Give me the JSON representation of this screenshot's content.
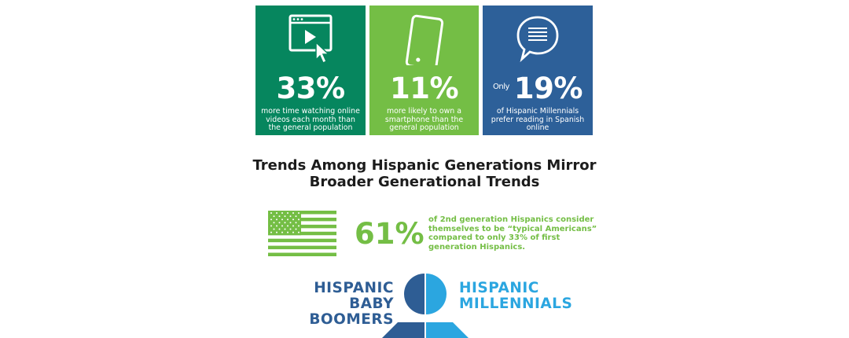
{
  "colors": {
    "dark_green": "#06865e",
    "light_green": "#74be45",
    "blue": "#2d6099",
    "dark_blue": "#2e5d94",
    "light_blue": "#2ba6e0",
    "headline": "#1c1c1c"
  },
  "cards": [
    {
      "icon": "video-play-icon",
      "value": "33%",
      "prefix": "",
      "description": "more time watching online videos each month than the general population"
    },
    {
      "icon": "smartphone-icon",
      "value": "11%",
      "prefix": "",
      "description": "more likely to own a smartphone than the general population"
    },
    {
      "icon": "speech-bubble-icon",
      "value": "19%",
      "prefix": "Only",
      "description": "of Hispanic Millennials prefer reading in Spanish online"
    }
  ],
  "headline": "Trends Among Hispanic Generations Mirror Broader Generational Trends",
  "stat": {
    "icon": "us-flag-icon",
    "value": "61%",
    "text": "of 2nd generation Hispanics consider themselves to be “typical Americans” compared to only 33% of first generation Hispanics."
  },
  "generations": {
    "left": {
      "line1": "HISPANIC",
      "line2": "BABY BOOMERS"
    },
    "right": {
      "line1": "HISPANIC",
      "line2": "MILLENNIALS"
    }
  }
}
